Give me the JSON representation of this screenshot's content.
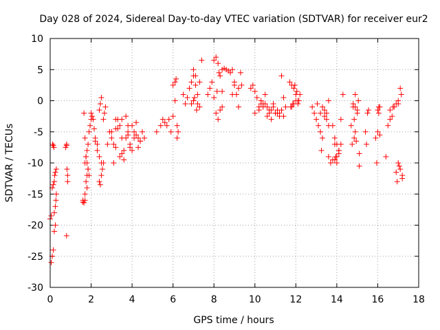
{
  "chart_data": {
    "type": "scatter",
    "title": "Day 028 of 2024, Sidereal Day-to-day VTEC variation (SDTVAR) for receiver eur2",
    "xlabel": "GPS time / hours",
    "ylabel": "SDTVAR / TECUs",
    "xlim": [
      0,
      18
    ],
    "ylim": [
      -30,
      10
    ],
    "xticks": [
      0,
      2,
      4,
      6,
      8,
      10,
      12,
      14,
      16,
      18
    ],
    "yticks": [
      -30,
      -25,
      -20,
      -15,
      -10,
      -5,
      0,
      5,
      10
    ],
    "grid": true,
    "marker": "+",
    "color": "#ff0000",
    "series": [
      {
        "name": "SDTVAR",
        "x": [
          0.0,
          0.05,
          0.1,
          0.15,
          0.2,
          0.05,
          0.1,
          0.15,
          0.2,
          0.25,
          0.12,
          0.15,
          0.18,
          0.2,
          0.25,
          0.28,
          0.3,
          0.22,
          0.25,
          0.3,
          0.75,
          0.8,
          0.8,
          0.82,
          0.85,
          0.85,
          0.8,
          1.6,
          1.65,
          1.7,
          1.75,
          1.8,
          1.85,
          1.7,
          1.75,
          1.8,
          1.85,
          1.9,
          1.95,
          2.0,
          2.0,
          2.05,
          2.1,
          2.15,
          1.65,
          1.7,
          1.75,
          1.8,
          1.85,
          1.9,
          1.6,
          1.7,
          1.8,
          2.2,
          2.3,
          2.4,
          2.5,
          2.6,
          2.65,
          2.7,
          2.4,
          2.45,
          2.5,
          2.4,
          2.45,
          2.5,
          2.55,
          2.6,
          2.2,
          2.3,
          2.8,
          2.9,
          3.0,
          3.1,
          3.2,
          3.3,
          3.4,
          3.5,
          3.6,
          3.7,
          3.8,
          3.9,
          4.0,
          4.1,
          4.2,
          4.3,
          4.4,
          4.5,
          4.6,
          3.0,
          3.2,
          3.4,
          3.6,
          3.8,
          4.0,
          4.2,
          4.4,
          3.1,
          3.3,
          3.5,
          3.7,
          3.9,
          4.1,
          4.3,
          3.2,
          3.5,
          3.8,
          5.2,
          5.4,
          5.6,
          5.8,
          6.0,
          5.5,
          5.7,
          5.9,
          6.0,
          6.1,
          6.15,
          6.2,
          6.2,
          6.25,
          6.1,
          6.5,
          6.6,
          6.7,
          6.8,
          6.9,
          7.0,
          7.1,
          7.2,
          7.3,
          7.4,
          7.0,
          7.1,
          7.2,
          7.3,
          7.05,
          7.15,
          6.9,
          7.0,
          7.7,
          7.8,
          7.9,
          8.0,
          8.1,
          8.2,
          8.3,
          8.4,
          8.1,
          8.2,
          8.3,
          8.4,
          8.0,
          8.15,
          8.25,
          8.4,
          8.5,
          8.6,
          8.7,
          8.8,
          8.9,
          9.0,
          9.1,
          9.2,
          9.3,
          9.0,
          9.2,
          9.35,
          8.9,
          9.8,
          9.9,
          10.0,
          10.1,
          10.2,
          10.3,
          10.4,
          10.5,
          10.6,
          10.7,
          10.8,
          10.9,
          11.0,
          11.1,
          11.2,
          11.3,
          11.4,
          11.5,
          10.0,
          10.2,
          10.4,
          10.6,
          10.8,
          11.0,
          11.2,
          11.4,
          10.3,
          10.5,
          10.7,
          10.9,
          11.1,
          11.3,
          11.7,
          11.8,
          11.9,
          12.0,
          12.1,
          12.2,
          11.75,
          11.85,
          11.95,
          12.05,
          12.15,
          11.8,
          11.9,
          12.0,
          12.1,
          12.8,
          12.9,
          13.0,
          13.1,
          13.2,
          13.3,
          13.4,
          13.5,
          13.6,
          13.2,
          13.3,
          13.4,
          13.5,
          13.6,
          13.05,
          13.25,
          13.6,
          13.7,
          13.8,
          13.9,
          14.0,
          14.1,
          14.2,
          14.3,
          13.8,
          13.9,
          14.0,
          14.1,
          14.2,
          13.9,
          14.0,
          14.1,
          13.95,
          14.7,
          14.8,
          14.9,
          15.0,
          15.1,
          14.75,
          14.85,
          14.9,
          14.95,
          15.05,
          14.8,
          14.85,
          14.9,
          15.0,
          15.1,
          15.4,
          15.5,
          15.55,
          15.45,
          15.9,
          16.0,
          16.05,
          16.1,
          16.0,
          16.05,
          16.1,
          15.95,
          16.4,
          16.5,
          16.6,
          16.7,
          16.8,
          16.9,
          17.0,
          17.1,
          17.2,
          16.9,
          17.0,
          17.1,
          17.2,
          16.95,
          17.05,
          17.15,
          16.6,
          16.75,
          17.0,
          17.1
        ]
      }
    ]
  }
}
